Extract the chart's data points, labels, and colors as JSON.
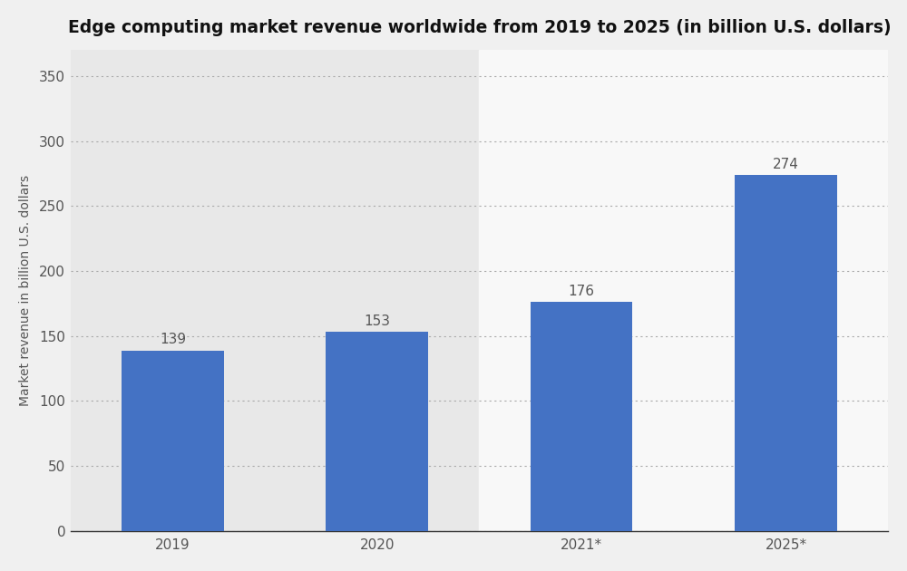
{
  "title": "Edge computing market revenue worldwide from 2019 to 2025 (in billion U.S. dollars)",
  "categories": [
    "2019",
    "2020",
    "2021*",
    "2025*"
  ],
  "values": [
    139,
    153,
    176,
    274
  ],
  "bar_color": "#4472c4",
  "background_color": "#f0f0f0",
  "plot_background_color": "#f0f0f0",
  "col_bg_dark": "#e8e8e8",
  "col_bg_light": "#f8f8f8",
  "ylabel": "Market revenue in billion U.S. dollars",
  "ylim": [
    0,
    370
  ],
  "yticks": [
    0,
    50,
    100,
    150,
    200,
    250,
    300,
    350
  ],
  "title_fontsize": 13.5,
  "label_fontsize": 10,
  "tick_fontsize": 11,
  "value_label_fontsize": 11,
  "bar_width": 0.5,
  "grid_color": "#aaaaaa",
  "title_color": "#111111"
}
